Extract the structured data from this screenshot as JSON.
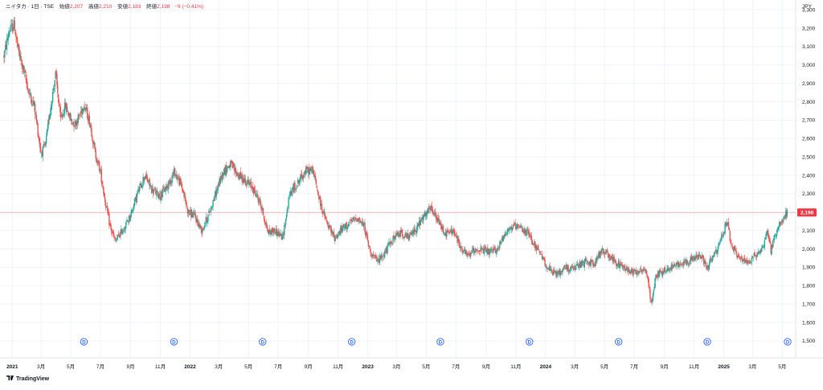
{
  "legend": {
    "symbol": "ニイタカ · 1日 · TSE",
    "open_label": "始値",
    "open_value": "2,207",
    "high_label": "高値",
    "high_value": "2,210",
    "low_label": "安値",
    "low_value": "2,183",
    "close_label": "終値",
    "close_value": "2,198",
    "change": "−9 (−0.41%)"
  },
  "currency": "JPY",
  "footer": {
    "brand": "TradingView"
  },
  "colors": {
    "up": "#26a69a",
    "down": "#ef5350",
    "price_line": "#f7a1a6",
    "last_price_bg": "#f23645",
    "dividend": "#2962ff",
    "grid": "#f0f3fa",
    "axis_text": "#131722"
  },
  "chart_data": {
    "type": "candlestick",
    "y_axis": {
      "ylim": [
        1480,
        3320
      ],
      "ticks": [
        1500,
        1600,
        1700,
        1800,
        1900,
        2000,
        2100,
        2200,
        2300,
        2400,
        2500,
        2600,
        2700,
        2800,
        2900,
        3000,
        3100,
        3200,
        3300
      ],
      "tick_labels": [
        "1,500",
        "1,600",
        "1,700",
        "1,800",
        "1,900",
        "2,000",
        "2,100",
        "2,200",
        "2,300",
        "2,400",
        "2,500",
        "2,600",
        "2,700",
        "2,800",
        "2,900",
        "3,000",
        "3,100",
        "3,200",
        "3,300"
      ],
      "position": "right"
    },
    "x_axis": {
      "range": [
        "2020-12-15",
        "2025-05-12"
      ],
      "ticks": [
        {
          "date": "2021-01-01",
          "label": "2021",
          "bold": true
        },
        {
          "date": "2021-03-01",
          "label": "3月"
        },
        {
          "date": "2021-05-01",
          "label": "5月"
        },
        {
          "date": "2021-07-01",
          "label": "7月"
        },
        {
          "date": "2021-09-01",
          "label": "9月"
        },
        {
          "date": "2021-11-01",
          "label": "11月"
        },
        {
          "date": "2022-01-01",
          "label": "2022",
          "bold": true
        },
        {
          "date": "2022-03-01",
          "label": "3月"
        },
        {
          "date": "2022-05-01",
          "label": "5月"
        },
        {
          "date": "2022-07-01",
          "label": "7月"
        },
        {
          "date": "2022-09-01",
          "label": "9月"
        },
        {
          "date": "2022-11-01",
          "label": "11月"
        },
        {
          "date": "2023-01-01",
          "label": "2023",
          "bold": true
        },
        {
          "date": "2023-03-01",
          "label": "3月"
        },
        {
          "date": "2023-05-01",
          "label": "5月"
        },
        {
          "date": "2023-07-01",
          "label": "7月"
        },
        {
          "date": "2023-09-01",
          "label": "9月"
        },
        {
          "date": "2023-11-01",
          "label": "11月"
        },
        {
          "date": "2024-01-01",
          "label": "2024",
          "bold": true
        },
        {
          "date": "2024-03-01",
          "label": "3月"
        },
        {
          "date": "2024-05-01",
          "label": "5月"
        },
        {
          "date": "2024-07-01",
          "label": "7月"
        },
        {
          "date": "2024-09-01",
          "label": "9月"
        },
        {
          "date": "2024-11-01",
          "label": "11月"
        },
        {
          "date": "2025-01-01",
          "label": "2025",
          "bold": true
        },
        {
          "date": "2025-03-01",
          "label": "3月"
        },
        {
          "date": "2025-05-01",
          "label": "5月"
        }
      ]
    },
    "grid": true,
    "last_price": {
      "value": 2198,
      "label": "2,198"
    },
    "dividend_markers": {
      "label": "D",
      "dates": [
        "2021-05-28",
        "2021-11-29",
        "2022-05-30",
        "2022-11-29",
        "2023-05-30",
        "2023-11-29",
        "2024-05-30",
        "2024-11-28",
        "2025-05-12"
      ]
    },
    "price_path": [
      [
        "2020-12-15",
        3050
      ],
      [
        "2020-12-25",
        3180
      ],
      [
        "2021-01-05",
        3220
      ],
      [
        "2021-01-12",
        3090
      ],
      [
        "2021-01-20",
        3010
      ],
      [
        "2021-01-28",
        2930
      ],
      [
        "2021-02-05",
        2840
      ],
      [
        "2021-02-15",
        2780
      ],
      [
        "2021-02-22",
        2650
      ],
      [
        "2021-03-01",
        2520
      ],
      [
        "2021-03-10",
        2560
      ],
      [
        "2021-03-20",
        2760
      ],
      [
        "2021-03-31",
        2950
      ],
      [
        "2021-04-10",
        2700
      ],
      [
        "2021-04-20",
        2780
      ],
      [
        "2021-05-01",
        2700
      ],
      [
        "2021-05-10",
        2680
      ],
      [
        "2021-05-20",
        2730
      ],
      [
        "2021-05-28",
        2790
      ],
      [
        "2021-06-10",
        2680
      ],
      [
        "2021-06-20",
        2520
      ],
      [
        "2021-07-01",
        2420
      ],
      [
        "2021-07-10",
        2270
      ],
      [
        "2021-07-20",
        2130
      ],
      [
        "2021-07-31",
        2040
      ],
      [
        "2021-08-10",
        2080
      ],
      [
        "2021-08-20",
        2120
      ],
      [
        "2021-08-31",
        2180
      ],
      [
        "2021-09-15",
        2300
      ],
      [
        "2021-09-30",
        2400
      ],
      [
        "2021-10-15",
        2320
      ],
      [
        "2021-10-31",
        2290
      ],
      [
        "2021-11-15",
        2340
      ],
      [
        "2021-11-30",
        2420
      ],
      [
        "2021-12-15",
        2340
      ],
      [
        "2021-12-28",
        2200
      ],
      [
        "2022-01-10",
        2180
      ],
      [
        "2022-01-25",
        2100
      ],
      [
        "2022-02-10",
        2200
      ],
      [
        "2022-02-25",
        2320
      ],
      [
        "2022-03-10",
        2420
      ],
      [
        "2022-03-25",
        2460
      ],
      [
        "2022-04-10",
        2400
      ],
      [
        "2022-04-25",
        2370
      ],
      [
        "2022-05-10",
        2330
      ],
      [
        "2022-05-25",
        2250
      ],
      [
        "2022-06-10",
        2090
      ],
      [
        "2022-06-25",
        2100
      ],
      [
        "2022-07-10",
        2060
      ],
      [
        "2022-07-25",
        2300
      ],
      [
        "2022-08-10",
        2360
      ],
      [
        "2022-08-25",
        2420
      ],
      [
        "2022-09-10",
        2430
      ],
      [
        "2022-09-25",
        2250
      ],
      [
        "2022-10-10",
        2130
      ],
      [
        "2022-10-25",
        2060
      ],
      [
        "2022-11-10",
        2110
      ],
      [
        "2022-11-25",
        2140
      ],
      [
        "2022-12-10",
        2170
      ],
      [
        "2022-12-25",
        2120
      ],
      [
        "2023-01-05",
        1990
      ],
      [
        "2023-01-20",
        1930
      ],
      [
        "2023-02-05",
        1980
      ],
      [
        "2023-02-20",
        2050
      ],
      [
        "2023-03-10",
        2090
      ],
      [
        "2023-03-25",
        2060
      ],
      [
        "2023-04-10",
        2110
      ],
      [
        "2023-04-25",
        2170
      ],
      [
        "2023-05-10",
        2220
      ],
      [
        "2023-05-25",
        2150
      ],
      [
        "2023-06-10",
        2080
      ],
      [
        "2023-06-25",
        2100
      ],
      [
        "2023-07-10",
        2010
      ],
      [
        "2023-07-25",
        1960
      ],
      [
        "2023-08-10",
        2000
      ],
      [
        "2023-08-25",
        1990
      ],
      [
        "2023-09-10",
        1980
      ],
      [
        "2023-09-25",
        2000
      ],
      [
        "2023-10-10",
        2090
      ],
      [
        "2023-10-25",
        2120
      ],
      [
        "2023-11-10",
        2110
      ],
      [
        "2023-11-25",
        2090
      ],
      [
        "2023-12-10",
        2020
      ],
      [
        "2023-12-25",
        1950
      ],
      [
        "2024-01-10",
        1880
      ],
      [
        "2024-01-25",
        1860
      ],
      [
        "2024-02-10",
        1900
      ],
      [
        "2024-02-25",
        1890
      ],
      [
        "2024-03-10",
        1910
      ],
      [
        "2024-03-25",
        1930
      ],
      [
        "2024-04-10",
        1920
      ],
      [
        "2024-04-25",
        1990
      ],
      [
        "2024-05-10",
        1970
      ],
      [
        "2024-05-25",
        1920
      ],
      [
        "2024-06-10",
        1900
      ],
      [
        "2024-06-25",
        1880
      ],
      [
        "2024-07-10",
        1880
      ],
      [
        "2024-07-25",
        1890
      ],
      [
        "2024-08-05",
        1700
      ],
      [
        "2024-08-15",
        1860
      ],
      [
        "2024-08-31",
        1880
      ],
      [
        "2024-09-15",
        1900
      ],
      [
        "2024-09-30",
        1920
      ],
      [
        "2024-10-15",
        1930
      ],
      [
        "2024-10-31",
        1950
      ],
      [
        "2024-11-15",
        1960
      ],
      [
        "2024-11-28",
        1900
      ],
      [
        "2024-12-10",
        1960
      ],
      [
        "2024-12-20",
        2000
      ],
      [
        "2024-12-30",
        2080
      ],
      [
        "2025-01-08",
        2160
      ],
      [
        "2025-01-15",
        2030
      ],
      [
        "2025-01-25",
        1980
      ],
      [
        "2025-02-05",
        1940
      ],
      [
        "2025-02-20",
        1930
      ],
      [
        "2025-03-05",
        1960
      ],
      [
        "2025-03-20",
        2000
      ],
      [
        "2025-04-01",
        2100
      ],
      [
        "2025-04-08",
        1990
      ],
      [
        "2025-04-18",
        2090
      ],
      [
        "2025-04-28",
        2150
      ],
      [
        "2025-05-12",
        2198
      ]
    ]
  }
}
